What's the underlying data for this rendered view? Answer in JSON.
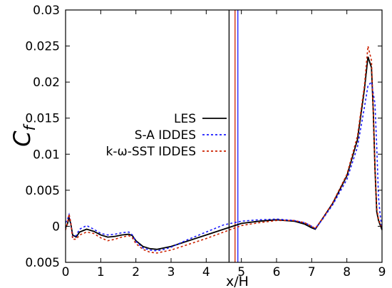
{
  "chart_data": {
    "type": "line",
    "xlabel": "x/H",
    "ylabel": "C",
    "ylabel_sub": "f",
    "xlim": [
      0,
      9
    ],
    "ylim": [
      -0.005,
      0.03
    ],
    "x_ticks": [
      0,
      1,
      2,
      3,
      4,
      5,
      6,
      7,
      8,
      9
    ],
    "x_tick_labels": [
      "0",
      "1",
      "2",
      "3",
      "4",
      "5",
      "6",
      "7",
      "8",
      "9"
    ],
    "y_ticks": [
      -0.005,
      0,
      0.005,
      0.01,
      0.015,
      0.02,
      0.025,
      0.03
    ],
    "y_tick_labels": [
      "0.005",
      "0",
      "0.005",
      "0.01",
      "0.015",
      "0.02",
      "0.025",
      "0.03"
    ],
    "grid": false,
    "legend_position": "center",
    "vertical_lines": [
      {
        "x": 4.65,
        "color": "#000000"
      },
      {
        "x": 4.82,
        "color": "#cc2200"
      },
      {
        "x": 4.9,
        "color": "#1a1aff"
      }
    ],
    "series": [
      {
        "name": "LES",
        "color": "#000000",
        "dash": "solid",
        "x": [
          0.0,
          0.05,
          0.1,
          0.15,
          0.2,
          0.3,
          0.4,
          0.6,
          0.8,
          1.0,
          1.2,
          1.4,
          1.6,
          1.8,
          1.9,
          2.0,
          2.2,
          2.4,
          2.6,
          2.8,
          3.0,
          3.5,
          4.0,
          4.5,
          5.0,
          5.5,
          6.0,
          6.5,
          6.8,
          7.0,
          7.1,
          7.3,
          7.6,
          8.0,
          8.3,
          8.5,
          8.6,
          8.7,
          8.75,
          8.8,
          8.85,
          8.9,
          9.0
        ],
        "y": [
          -0.0002,
          0.0003,
          0.0012,
          0.0003,
          -0.0012,
          -0.0015,
          -0.0008,
          -0.0004,
          -0.0007,
          -0.0012,
          -0.0015,
          -0.0014,
          -0.0012,
          -0.0011,
          -0.0013,
          -0.002,
          -0.0028,
          -0.0031,
          -0.0032,
          -0.003,
          -0.0028,
          -0.002,
          -0.0012,
          -0.0004,
          0.0004,
          0.0007,
          0.0009,
          0.0007,
          0.0003,
          -0.0002,
          -0.0004,
          0.001,
          0.0032,
          0.007,
          0.012,
          0.019,
          0.0235,
          0.022,
          0.016,
          0.008,
          0.002,
          0.0008,
          -0.0005
        ]
      },
      {
        "name": "S-A IDDES",
        "color": "#1a1aff",
        "dash": "dashed",
        "x": [
          0.0,
          0.05,
          0.1,
          0.15,
          0.2,
          0.3,
          0.4,
          0.6,
          0.8,
          1.0,
          1.2,
          1.4,
          1.6,
          1.8,
          1.9,
          2.0,
          2.2,
          2.4,
          2.6,
          2.8,
          3.0,
          3.5,
          4.0,
          4.5,
          5.0,
          5.5,
          6.0,
          6.5,
          6.8,
          7.0,
          7.1,
          7.3,
          7.6,
          8.0,
          8.3,
          8.5,
          8.6,
          8.7,
          8.8,
          8.85,
          8.9,
          8.95,
          9.0
        ],
        "y": [
          0.0005,
          0.0009,
          0.0016,
          0.0004,
          -0.0015,
          -0.0013,
          -0.0004,
          0.0001,
          -0.0004,
          -0.001,
          -0.0012,
          -0.0011,
          -0.0009,
          -0.0008,
          -0.0012,
          -0.0021,
          -0.003,
          -0.0033,
          -0.0034,
          -0.0032,
          -0.0029,
          -0.0018,
          -0.0008,
          0.0002,
          0.0007,
          0.0009,
          0.001,
          0.0008,
          0.0005,
          0.0,
          -0.0003,
          0.0009,
          0.003,
          0.0065,
          0.011,
          0.0165,
          0.0195,
          0.02,
          0.017,
          0.011,
          0.004,
          0.0015,
          -0.0003
        ]
      },
      {
        "name": "k-ω-SST IDDES",
        "color": "#cc2200",
        "dash": "dashed",
        "x": [
          0.0,
          0.05,
          0.1,
          0.15,
          0.2,
          0.3,
          0.4,
          0.6,
          0.8,
          1.0,
          1.2,
          1.4,
          1.6,
          1.8,
          1.9,
          2.0,
          2.2,
          2.4,
          2.6,
          2.8,
          3.0,
          3.5,
          4.0,
          4.5,
          5.0,
          5.5,
          6.0,
          6.5,
          6.8,
          7.0,
          7.1,
          7.3,
          7.6,
          8.0,
          8.3,
          8.5,
          8.6,
          8.7,
          8.75,
          8.8,
          8.85,
          8.9,
          9.0
        ],
        "y": [
          -0.0005,
          0.0004,
          0.0017,
          0.0005,
          -0.0018,
          -0.0018,
          -0.0012,
          -0.0008,
          -0.001,
          -0.0016,
          -0.002,
          -0.0018,
          -0.0015,
          -0.0013,
          -0.0016,
          -0.0024,
          -0.0032,
          -0.0036,
          -0.0037,
          -0.0035,
          -0.0033,
          -0.0025,
          -0.0017,
          -0.0008,
          0.0001,
          0.0005,
          0.0008,
          0.0008,
          0.0005,
          0.0,
          -0.0003,
          0.001,
          0.0033,
          0.0072,
          0.0125,
          0.0195,
          0.025,
          0.023,
          0.016,
          0.008,
          0.0025,
          0.001,
          -0.0004
        ]
      }
    ]
  }
}
